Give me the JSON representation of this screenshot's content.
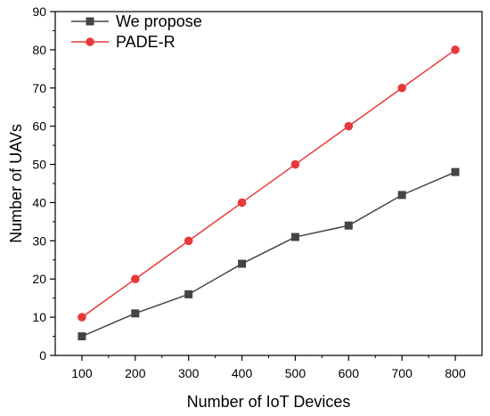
{
  "chart_data": {
    "type": "line",
    "title": "",
    "xlabel": "Number of IoT Devices",
    "ylabel": "Number of UAVs",
    "x": [
      100,
      200,
      300,
      400,
      500,
      600,
      700,
      800
    ],
    "xlim": [
      50,
      850
    ],
    "ylim": [
      0,
      90
    ],
    "x_ticks": [
      100,
      200,
      300,
      400,
      500,
      600,
      700,
      800
    ],
    "y_ticks": [
      0,
      10,
      20,
      30,
      40,
      50,
      60,
      70,
      80,
      90
    ],
    "grid": false,
    "legend_position": "top-left",
    "series": [
      {
        "name": "We propose",
        "color": "#444444",
        "marker": "square",
        "values": [
          5,
          11,
          16,
          24,
          31,
          34,
          42,
          48
        ]
      },
      {
        "name": "PADE-R",
        "color": "#e8393a",
        "marker": "circle",
        "values": [
          10,
          20,
          30,
          40,
          50,
          60,
          70,
          80
        ]
      }
    ]
  }
}
